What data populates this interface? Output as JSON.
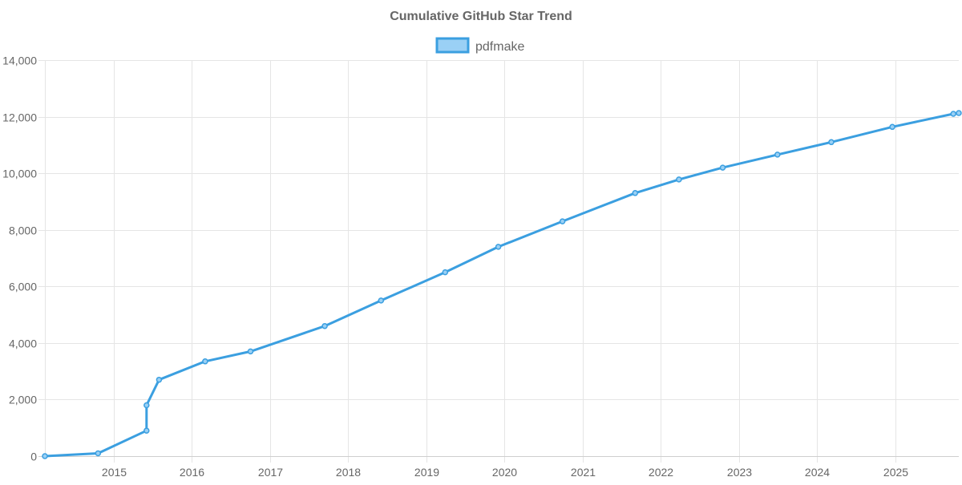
{
  "chart_data": {
    "type": "line",
    "title": "Cumulative GitHub Star Trend",
    "xlabel": "",
    "ylabel": "",
    "legend_position": "top-center",
    "grid": true,
    "xlim": [
      2014.12,
      2025.81
    ],
    "ylim": [
      0,
      14000
    ],
    "x_ticks": [
      2015,
      2016,
      2017,
      2018,
      2019,
      2020,
      2021,
      2022,
      2023,
      2024,
      2025
    ],
    "x_tick_labels": [
      "2015",
      "2016",
      "2017",
      "2018",
      "2019",
      "2020",
      "2021",
      "2022",
      "2023",
      "2024",
      "2025"
    ],
    "y_ticks": [
      0,
      2000,
      4000,
      6000,
      8000,
      10000,
      12000,
      14000
    ],
    "y_tick_labels": [
      "0",
      "2,000",
      "4,000",
      "6,000",
      "8,000",
      "10,000",
      "12,000",
      "14,000"
    ],
    "series": [
      {
        "name": "pdfmake",
        "color": "#3b9fe0",
        "fill_color": "#9ad0f5",
        "points": [
          {
            "x": 2014.12,
            "y": 0
          },
          {
            "x": 2014.8,
            "y": 100
          },
          {
            "x": 2015.42,
            "y": 900
          },
          {
            "x": 2015.42,
            "y": 1800
          },
          {
            "x": 2015.58,
            "y": 2700
          },
          {
            "x": 2016.17,
            "y": 3350
          },
          {
            "x": 2016.75,
            "y": 3700
          },
          {
            "x": 2017.7,
            "y": 4600
          },
          {
            "x": 2018.42,
            "y": 5500
          },
          {
            "x": 2019.24,
            "y": 6500
          },
          {
            "x": 2019.92,
            "y": 7400
          },
          {
            "x": 2020.74,
            "y": 8300
          },
          {
            "x": 2021.67,
            "y": 9300
          },
          {
            "x": 2022.23,
            "y": 9780
          },
          {
            "x": 2022.79,
            "y": 10200
          },
          {
            "x": 2023.49,
            "y": 10660
          },
          {
            "x": 2024.18,
            "y": 11100
          },
          {
            "x": 2024.96,
            "y": 11640
          },
          {
            "x": 2025.74,
            "y": 12100
          },
          {
            "x": 2025.81,
            "y": 12130
          }
        ]
      }
    ]
  }
}
